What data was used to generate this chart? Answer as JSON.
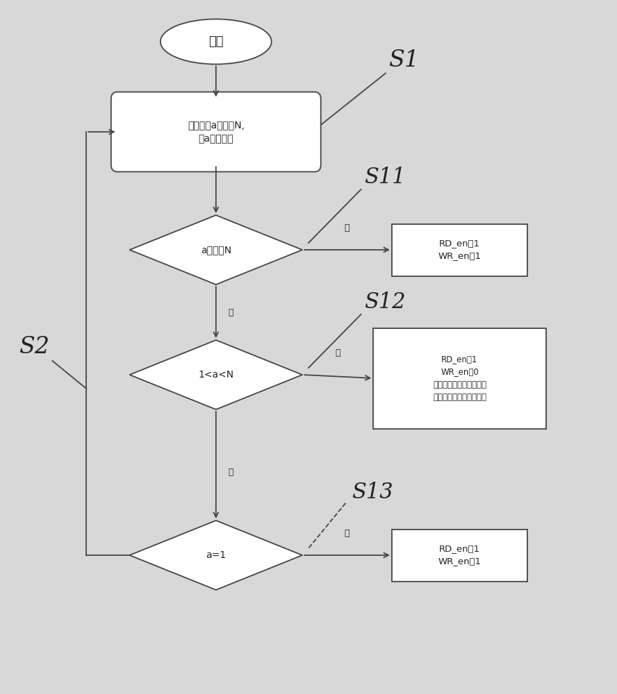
{
  "bg_color": "#d8d8d8",
  "box_fc": "#ffffff",
  "box_ec": "#444444",
  "text_color": "#222222",
  "title_start": "开始",
  "node_s1_text": "将信号量a赋值为N,\n对a进行自减",
  "diamond_s11_text": "a是否为N",
  "box_s11_text": "RD_en置1\nWR_en置1",
  "diamond_s12_text": "1<a<N",
  "box_s12_text": "RD_en置1\nWR_en置0\n将数据与上一个数据作比\n较，取其最大值与最小值",
  "diamond_s13_text": "a=1",
  "box_s13_text": "RD_en置1\nWR_en置1",
  "label_s1": "S1",
  "label_s2": "S2",
  "label_s11": "S11",
  "label_s12": "S12",
  "label_s13": "S13",
  "yes_text": "是",
  "no_text": "否"
}
